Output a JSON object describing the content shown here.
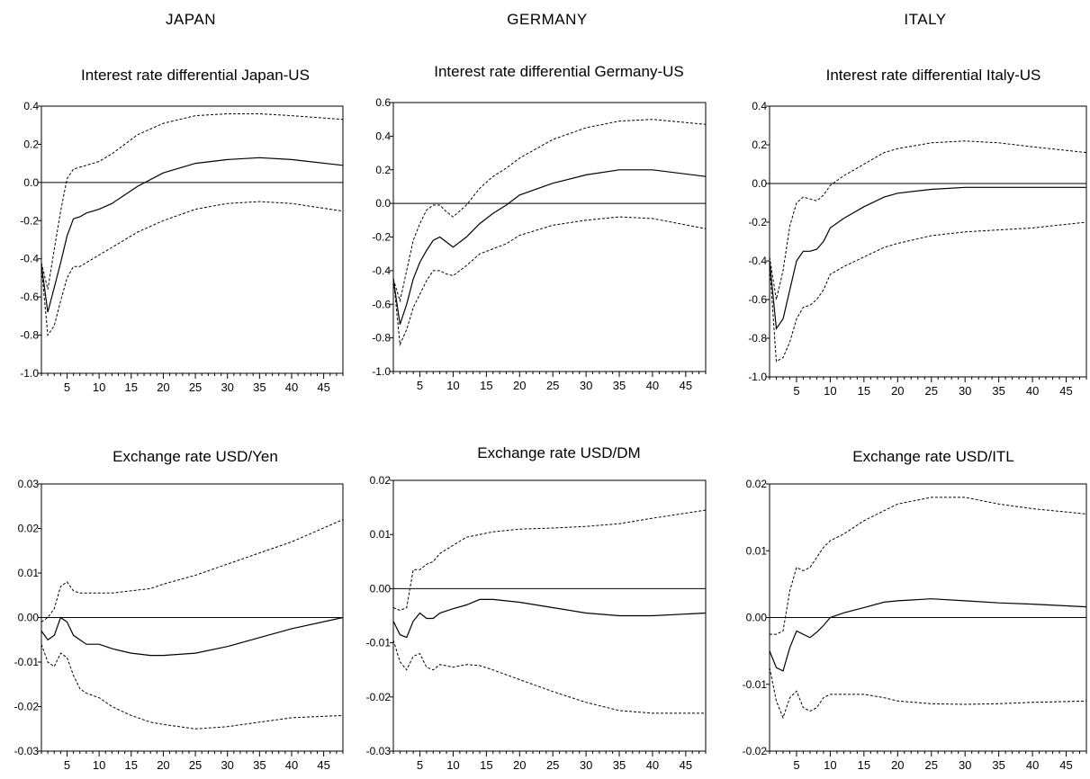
{
  "countries": [
    "JAPAN",
    "GERMANY",
    "ITALY"
  ],
  "chart_data": [
    {
      "type": "line",
      "country": "JAPAN",
      "title": "Interest rate differential Japan-US",
      "ylim": [
        -1.0,
        0.4
      ],
      "yticks": [
        -1.0,
        -0.8,
        -0.6,
        -0.4,
        -0.2,
        0.0,
        0.2,
        0.4
      ],
      "ytick_labels": [
        "-1.0",
        "-0.8",
        "-0.6",
        "-0.4",
        "-0.2",
        "0.0",
        "0.2",
        "0.4"
      ],
      "xlim": [
        1,
        48
      ],
      "xtick_labels": [
        "5",
        "10",
        "15",
        "20",
        "25",
        "30",
        "35",
        "40",
        "45"
      ],
      "grid": false,
      "series": [
        {
          "style": "solid",
          "x": [
            1,
            2,
            3,
            4,
            5,
            6,
            7,
            8,
            10,
            12,
            16,
            20,
            25,
            30,
            35,
            40,
            48
          ],
          "y": [
            -0.43,
            -0.68,
            -0.55,
            -0.42,
            -0.28,
            -0.19,
            -0.18,
            -0.16,
            -0.14,
            -0.11,
            -0.02,
            0.05,
            0.1,
            0.12,
            0.13,
            0.12,
            0.09
          ]
        },
        {
          "style": "dashed",
          "x": [
            1,
            2,
            3,
            4,
            5,
            6,
            7,
            8,
            10,
            12,
            16,
            20,
            25,
            30,
            35,
            40,
            48
          ],
          "y": [
            -0.42,
            -0.56,
            -0.35,
            -0.15,
            0.02,
            0.07,
            0.08,
            0.09,
            0.11,
            0.15,
            0.25,
            0.31,
            0.35,
            0.36,
            0.36,
            0.35,
            0.33
          ]
        },
        {
          "style": "dashed",
          "x": [
            1,
            2,
            3,
            4,
            5,
            6,
            7,
            8,
            10,
            12,
            16,
            20,
            25,
            30,
            35,
            40,
            48
          ],
          "y": [
            -0.44,
            -0.8,
            -0.75,
            -0.62,
            -0.5,
            -0.44,
            -0.44,
            -0.42,
            -0.38,
            -0.34,
            -0.26,
            -0.2,
            -0.14,
            -0.11,
            -0.1,
            -0.11,
            -0.15
          ]
        }
      ]
    },
    {
      "type": "line",
      "country": "GERMANY",
      "title": "Interest rate differential Germany-US",
      "ylim": [
        -1.0,
        0.6
      ],
      "yticks": [
        -1.0,
        -0.8,
        -0.6,
        -0.4,
        -0.2,
        0.0,
        0.2,
        0.4,
        0.6
      ],
      "ytick_labels": [
        "-1.0",
        "-0.8",
        "-0.6",
        "-0.4",
        "-0.2",
        "0.0",
        "0.2",
        "0.4",
        "0.6"
      ],
      "xlim": [
        1,
        48
      ],
      "xtick_labels": [
        "5",
        "10",
        "15",
        "20",
        "25",
        "30",
        "35",
        "40",
        "45"
      ],
      "grid": false,
      "series": [
        {
          "style": "solid",
          "x": [
            1,
            2,
            3,
            4,
            5,
            6,
            7,
            8,
            9,
            10,
            12,
            14,
            16,
            18,
            20,
            25,
            30,
            35,
            40,
            48
          ],
          "y": [
            -0.45,
            -0.72,
            -0.6,
            -0.45,
            -0.35,
            -0.28,
            -0.22,
            -0.2,
            -0.23,
            -0.26,
            -0.2,
            -0.12,
            -0.06,
            -0.01,
            0.05,
            0.12,
            0.17,
            0.2,
            0.2,
            0.16
          ]
        },
        {
          "style": "dashed",
          "x": [
            1,
            2,
            3,
            4,
            5,
            6,
            7,
            8,
            9,
            10,
            12,
            14,
            16,
            18,
            20,
            25,
            30,
            35,
            40,
            48
          ],
          "y": [
            -0.45,
            -0.58,
            -0.4,
            -0.22,
            -0.12,
            -0.04,
            -0.01,
            -0.01,
            -0.05,
            -0.08,
            -0.01,
            0.09,
            0.16,
            0.21,
            0.27,
            0.38,
            0.45,
            0.49,
            0.5,
            0.47
          ]
        },
        {
          "style": "dashed",
          "x": [
            1,
            2,
            3,
            4,
            5,
            6,
            7,
            8,
            9,
            10,
            12,
            14,
            16,
            18,
            20,
            25,
            30,
            35,
            40,
            48
          ],
          "y": [
            -0.44,
            -0.84,
            -0.75,
            -0.62,
            -0.54,
            -0.46,
            -0.4,
            -0.4,
            -0.42,
            -0.43,
            -0.37,
            -0.3,
            -0.27,
            -0.24,
            -0.19,
            -0.13,
            -0.1,
            -0.08,
            -0.09,
            -0.15
          ]
        }
      ]
    },
    {
      "type": "line",
      "country": "ITALY",
      "title": "Interest rate differential Italy-US",
      "ylim": [
        -1.0,
        0.4
      ],
      "yticks": [
        -1.0,
        -0.8,
        -0.6,
        -0.4,
        -0.2,
        0.0,
        0.2,
        0.4
      ],
      "ytick_labels": [
        "-1.0",
        "-0.8",
        "-0.6",
        "-0.4",
        "-0.2",
        "0.0",
        "0.2",
        "0.4"
      ],
      "xlim": [
        1,
        48
      ],
      "xtick_labels": [
        "5",
        "10",
        "15",
        "20",
        "25",
        "30",
        "35",
        "40",
        "45"
      ],
      "grid": false,
      "series": [
        {
          "style": "solid",
          "x": [
            1,
            2,
            3,
            4,
            5,
            6,
            7,
            8,
            9,
            10,
            12,
            15,
            18,
            20,
            25,
            30,
            35,
            40,
            48
          ],
          "y": [
            -0.4,
            -0.75,
            -0.7,
            -0.55,
            -0.4,
            -0.35,
            -0.35,
            -0.34,
            -0.3,
            -0.23,
            -0.18,
            -0.12,
            -0.07,
            -0.05,
            -0.03,
            -0.02,
            -0.02,
            -0.02,
            -0.02
          ]
        },
        {
          "style": "dashed",
          "x": [
            1,
            2,
            3,
            4,
            5,
            6,
            7,
            8,
            9,
            10,
            12,
            15,
            18,
            20,
            25,
            30,
            35,
            40,
            48
          ],
          "y": [
            -0.38,
            -0.6,
            -0.45,
            -0.22,
            -0.1,
            -0.07,
            -0.08,
            -0.09,
            -0.06,
            -0.01,
            0.04,
            0.1,
            0.16,
            0.18,
            0.21,
            0.22,
            0.21,
            0.19,
            0.16
          ]
        },
        {
          "style": "dashed",
          "x": [
            1,
            2,
            3,
            4,
            5,
            6,
            7,
            8,
            9,
            10,
            12,
            15,
            18,
            20,
            25,
            30,
            35,
            40,
            48
          ],
          "y": [
            -0.42,
            -0.92,
            -0.9,
            -0.82,
            -0.7,
            -0.64,
            -0.63,
            -0.6,
            -0.55,
            -0.47,
            -0.43,
            -0.38,
            -0.33,
            -0.31,
            -0.27,
            -0.25,
            -0.24,
            -0.23,
            -0.2
          ]
        }
      ]
    },
    {
      "type": "line",
      "country": "JAPAN",
      "title": "Exchange rate USD/Yen",
      "ylim": [
        -0.03,
        0.03
      ],
      "yticks": [
        -0.03,
        -0.02,
        -0.01,
        0.0,
        0.01,
        0.02,
        0.03
      ],
      "ytick_labels": [
        "-0.03",
        "-0.02",
        "-0.01",
        "0.00",
        "0.01",
        "0.02",
        "0.03"
      ],
      "xlim": [
        1,
        48
      ],
      "xtick_labels": [
        "5",
        "10",
        "15",
        "20",
        "25",
        "30",
        "35",
        "40",
        "45"
      ],
      "grid": false,
      "series": [
        {
          "style": "solid",
          "x": [
            1,
            2,
            3,
            4,
            5,
            6,
            7,
            8,
            10,
            12,
            15,
            18,
            20,
            25,
            30,
            35,
            40,
            48
          ],
          "y": [
            -0.003,
            -0.005,
            -0.004,
            0.0,
            -0.001,
            -0.004,
            -0.005,
            -0.006,
            -0.006,
            -0.007,
            -0.008,
            -0.0085,
            -0.0085,
            -0.008,
            -0.0065,
            -0.0045,
            -0.0025,
            0.0
          ]
        },
        {
          "style": "dashed",
          "x": [
            1,
            2,
            3,
            4,
            5,
            6,
            7,
            8,
            10,
            12,
            15,
            18,
            20,
            25,
            30,
            35,
            40,
            48
          ],
          "y": [
            -0.001,
            0.0,
            0.002,
            0.007,
            0.008,
            0.006,
            0.0055,
            0.0055,
            0.0055,
            0.0055,
            0.006,
            0.0065,
            0.0075,
            0.0095,
            0.012,
            0.0145,
            0.017,
            0.022
          ]
        },
        {
          "style": "dashed",
          "x": [
            1,
            2,
            3,
            4,
            5,
            6,
            7,
            8,
            10,
            12,
            15,
            18,
            20,
            25,
            30,
            35,
            40,
            48
          ],
          "y": [
            -0.006,
            -0.01,
            -0.011,
            -0.008,
            -0.009,
            -0.013,
            -0.016,
            -0.017,
            -0.018,
            -0.02,
            -0.022,
            -0.0235,
            -0.024,
            -0.025,
            -0.0245,
            -0.0235,
            -0.0225,
            -0.022
          ]
        }
      ]
    },
    {
      "type": "line",
      "country": "GERMANY",
      "title": "Exchange rate USD/DM",
      "ylim": [
        -0.03,
        0.02
      ],
      "yticks": [
        -0.03,
        -0.02,
        -0.01,
        0.0,
        0.01,
        0.02
      ],
      "ytick_labels": [
        "-0.03",
        "-0.02",
        "-0.01",
        "0.00",
        "0.01",
        "0.02"
      ],
      "xlim": [
        1,
        48
      ],
      "xtick_labels": [
        "5",
        "10",
        "15",
        "20",
        "25",
        "30",
        "35",
        "40",
        "45"
      ],
      "grid": false,
      "series": [
        {
          "style": "solid",
          "x": [
            1,
            2,
            3,
            4,
            5,
            6,
            7,
            8,
            10,
            12,
            14,
            16,
            20,
            25,
            30,
            35,
            40,
            48
          ],
          "y": [
            -0.006,
            -0.0085,
            -0.009,
            -0.006,
            -0.0045,
            -0.0055,
            -0.0055,
            -0.0045,
            -0.0037,
            -0.003,
            -0.002,
            -0.002,
            -0.0025,
            -0.0035,
            -0.0045,
            -0.005,
            -0.005,
            -0.0045
          ]
        },
        {
          "style": "dashed",
          "x": [
            1,
            2,
            3,
            4,
            5,
            6,
            7,
            8,
            10,
            12,
            14,
            16,
            20,
            25,
            30,
            35,
            40,
            48
          ],
          "y": [
            -0.0035,
            -0.004,
            -0.0035,
            0.0035,
            0.0035,
            0.0045,
            0.005,
            0.0065,
            0.008,
            0.0095,
            0.01,
            0.0105,
            0.011,
            0.0112,
            0.0115,
            0.012,
            0.013,
            0.0145
          ]
        },
        {
          "style": "dashed",
          "x": [
            1,
            2,
            3,
            4,
            5,
            6,
            7,
            8,
            10,
            12,
            14,
            16,
            20,
            25,
            30,
            35,
            40,
            48
          ],
          "y": [
            -0.0095,
            -0.0135,
            -0.015,
            -0.0125,
            -0.012,
            -0.0145,
            -0.015,
            -0.014,
            -0.0145,
            -0.014,
            -0.0142,
            -0.015,
            -0.0168,
            -0.019,
            -0.021,
            -0.0225,
            -0.023,
            -0.023
          ]
        }
      ]
    },
    {
      "type": "line",
      "country": "ITALY",
      "title": "Exchange rate USD/ITL",
      "ylim": [
        -0.02,
        0.02
      ],
      "yticks": [
        -0.02,
        -0.01,
        0.0,
        0.01,
        0.02
      ],
      "ytick_labels": [
        "-0.02",
        "-0.01",
        "0.00",
        "0.01",
        "0.02"
      ],
      "xlim": [
        1,
        48
      ],
      "xtick_labels": [
        "5",
        "10",
        "15",
        "20",
        "25",
        "30",
        "35",
        "40",
        "45"
      ],
      "grid": false,
      "series": [
        {
          "style": "solid",
          "x": [
            1,
            2,
            3,
            4,
            5,
            6,
            7,
            8,
            9,
            10,
            12,
            15,
            18,
            20,
            25,
            30,
            35,
            40,
            48
          ],
          "y": [
            -0.005,
            -0.0075,
            -0.008,
            -0.0045,
            -0.002,
            -0.0025,
            -0.003,
            -0.0022,
            -0.0012,
            0.0,
            0.0007,
            0.0015,
            0.0023,
            0.0025,
            0.0028,
            0.0025,
            0.0022,
            0.002,
            0.0016
          ]
        },
        {
          "style": "dashed",
          "x": [
            1,
            2,
            3,
            4,
            5,
            6,
            7,
            8,
            9,
            10,
            12,
            15,
            18,
            20,
            25,
            30,
            35,
            40,
            48
          ],
          "y": [
            -0.0025,
            -0.0025,
            -0.002,
            0.004,
            0.0075,
            0.007,
            0.0075,
            0.009,
            0.0105,
            0.0115,
            0.0125,
            0.0145,
            0.016,
            0.017,
            0.018,
            0.018,
            0.017,
            0.0163,
            0.0155
          ]
        },
        {
          "style": "dashed",
          "x": [
            1,
            2,
            3,
            4,
            5,
            6,
            7,
            8,
            9,
            10,
            12,
            15,
            18,
            20,
            25,
            30,
            35,
            40,
            48
          ],
          "y": [
            -0.0075,
            -0.0125,
            -0.015,
            -0.012,
            -0.011,
            -0.0135,
            -0.014,
            -0.0135,
            -0.012,
            -0.0115,
            -0.0115,
            -0.0115,
            -0.012,
            -0.0125,
            -0.0129,
            -0.013,
            -0.0129,
            -0.0127,
            -0.0125
          ]
        }
      ]
    }
  ]
}
